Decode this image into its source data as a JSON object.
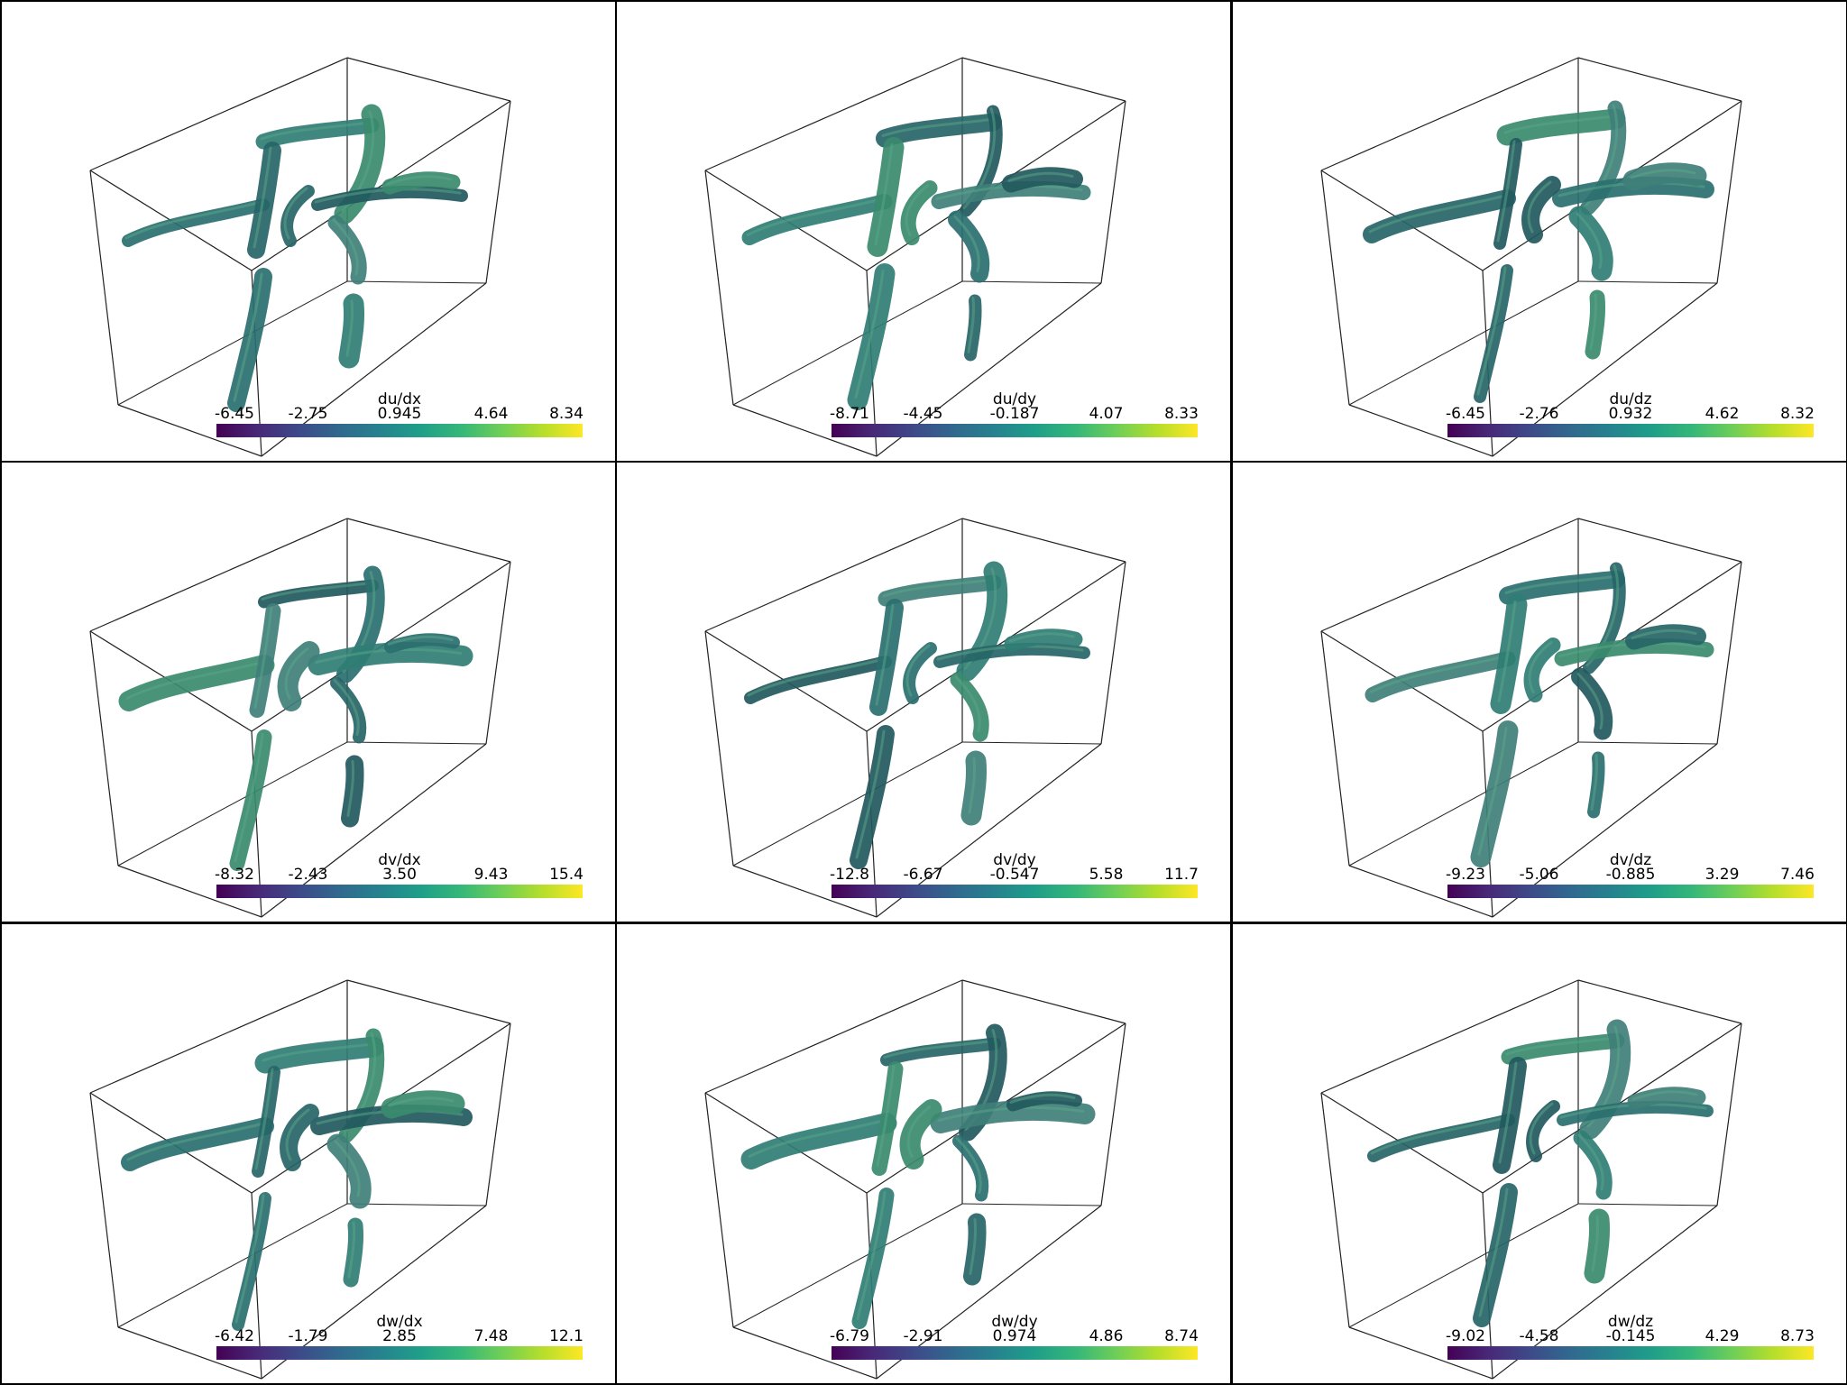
{
  "colormap": [
    "#440154",
    "#482878",
    "#3e4989",
    "#31688e",
    "#26828e",
    "#1f9e89",
    "#35b779",
    "#6ece58",
    "#b5de2b",
    "#fde725"
  ],
  "surface_colors": [
    "#2a6f6f",
    "#2f7d74",
    "#276567",
    "#3a8a6e",
    "#22595e",
    "#3f7f78"
  ],
  "panels": [
    {
      "title": "du/dx",
      "ticks": [
        "-6.45",
        "-2.75",
        "0.945",
        "4.64",
        "8.34"
      ]
    },
    {
      "title": "du/dy",
      "ticks": [
        "-8.71",
        "-4.45",
        "-0.187",
        "4.07",
        "8.33"
      ]
    },
    {
      "title": "du/dz",
      "ticks": [
        "-6.45",
        "-2.76",
        "0.932",
        "4.62",
        "8.32"
      ]
    },
    {
      "title": "dv/dx",
      "ticks": [
        "-8.32",
        "-2.43",
        "3.50",
        "9.43",
        "15.4"
      ]
    },
    {
      "title": "dv/dy",
      "ticks": [
        "-12.8",
        "-6.67",
        "-0.547",
        "5.58",
        "11.7"
      ]
    },
    {
      "title": "dv/dz",
      "ticks": [
        "-9.23",
        "-5.06",
        "-0.885",
        "3.29",
        "7.46"
      ]
    },
    {
      "title": "dw/dx",
      "ticks": [
        "-6.42",
        "-1.79",
        "2.85",
        "7.48",
        "12.1"
      ]
    },
    {
      "title": "dw/dy",
      "ticks": [
        "-6.79",
        "-2.91",
        "0.974",
        "4.86",
        "8.74"
      ]
    },
    {
      "title": "dw/dz",
      "ticks": [
        "-9.02",
        "-4.58",
        "-0.145",
        "4.29",
        "8.73"
      ]
    }
  ]
}
